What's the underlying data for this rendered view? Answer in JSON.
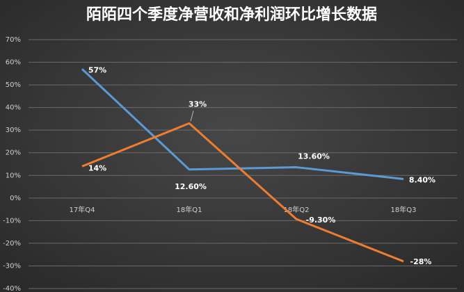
{
  "chart_data": {
    "type": "line",
    "title": "陌陌四个季度净营收和净利润环比增长数据",
    "categories": [
      "17年Q4",
      "18年Q1",
      "18年Q2",
      "18年Q3"
    ],
    "series": [
      {
        "color": "#5b9bd5",
        "values": [
          57,
          12.6,
          13.6,
          8.4
        ],
        "value_labels": [
          "57%",
          "12.60%",
          "13.60%",
          "8.40%"
        ]
      },
      {
        "color": "#ed7d31",
        "values": [
          14,
          33,
          -9.3,
          -28
        ],
        "value_labels": [
          "14%",
          "33%",
          "-9.30%",
          "-28%"
        ]
      }
    ],
    "ylim": [
      -40,
      70
    ],
    "yticks": [
      {
        "value": -40,
        "label": "-40%"
      },
      {
        "value": -30,
        "label": "-30%"
      },
      {
        "value": -20,
        "label": "-20%"
      },
      {
        "value": -10,
        "label": "-10%"
      },
      {
        "value": 0,
        "label": "0%"
      },
      {
        "value": 10,
        "label": "10%"
      },
      {
        "value": 20,
        "label": "20%"
      },
      {
        "value": 30,
        "label": "30%"
      },
      {
        "value": 40,
        "label": "40%"
      },
      {
        "value": 50,
        "label": "50%"
      },
      {
        "value": 60,
        "label": "60%"
      },
      {
        "value": 70,
        "label": "70%"
      }
    ],
    "grid": true
  }
}
